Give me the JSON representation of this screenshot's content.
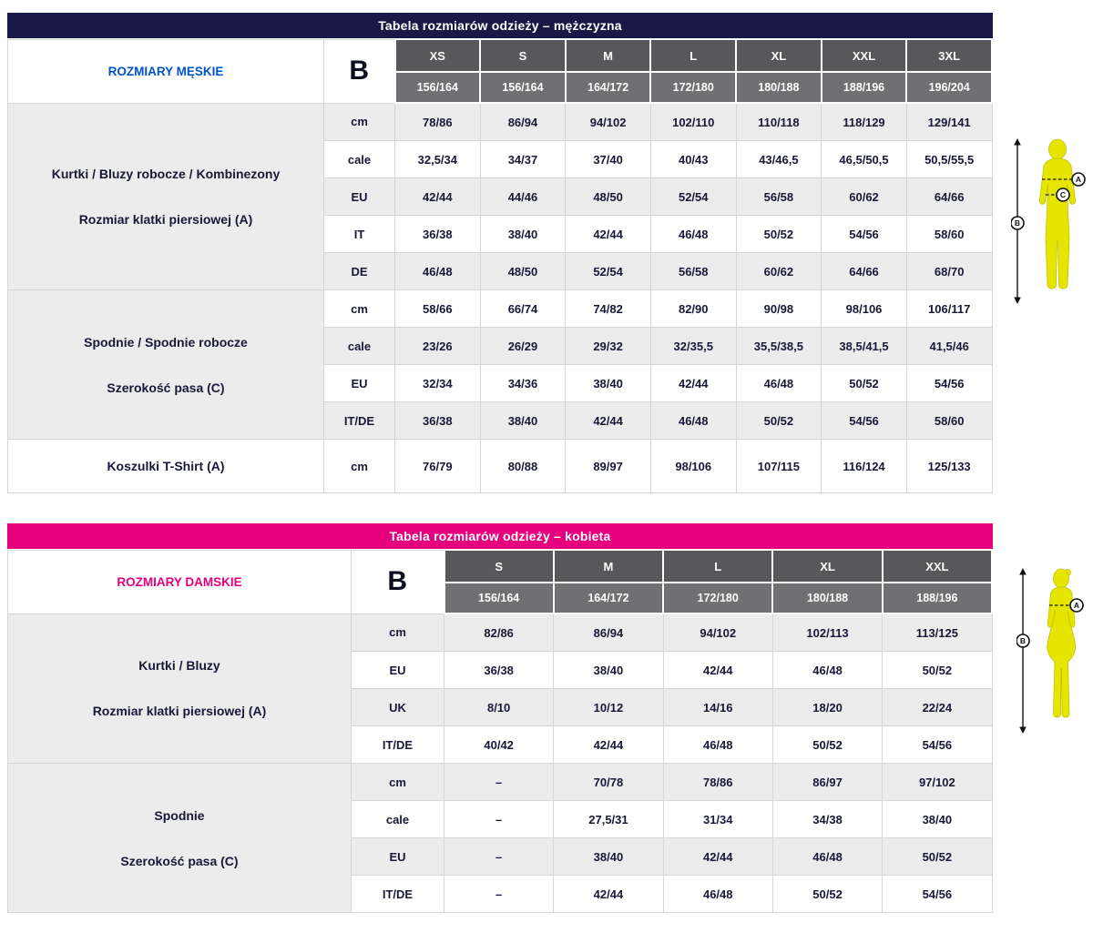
{
  "men_table": {
    "title": "Tabela rozmiarów odzieży – mężczyzna",
    "corner_label": "ROZMIARY MĘSKIE",
    "b_label": "B",
    "sizes": [
      "XS",
      "S",
      "M",
      "L",
      "XL",
      "XXL",
      "3XL"
    ],
    "heights": [
      "156/164",
      "156/164",
      "164/172",
      "172/180",
      "180/188",
      "188/196",
      "196/204"
    ],
    "sections": [
      {
        "label_lines": [
          "Kurtki / Bluzy robocze / Kombinezony",
          "Rozmiar klatki piersiowej (A)"
        ],
        "rows": [
          {
            "unit": "cm",
            "values": [
              "78/86",
              "86/94",
              "94/102",
              "102/110",
              "110/118",
              "118/129",
              "129/141"
            ]
          },
          {
            "unit": "cale",
            "values": [
              "32,5/34",
              "34/37",
              "37/40",
              "40/43",
              "43/46,5",
              "46,5/50,5",
              "50,5/55,5"
            ]
          },
          {
            "unit": "EU",
            "values": [
              "42/44",
              "44/46",
              "48/50",
              "52/54",
              "56/58",
              "60/62",
              "64/66"
            ]
          },
          {
            "unit": "IT",
            "values": [
              "36/38",
              "38/40",
              "42/44",
              "46/48",
              "50/52",
              "54/56",
              "58/60"
            ]
          },
          {
            "unit": "DE",
            "values": [
              "46/48",
              "48/50",
              "52/54",
              "56/58",
              "60/62",
              "64/66",
              "68/70"
            ]
          }
        ]
      },
      {
        "label_lines": [
          "Spodnie / Spodnie robocze",
          "Szerokość pasa (C)"
        ],
        "rows": [
          {
            "unit": "cm",
            "values": [
              "58/66",
              "66/74",
              "74/82",
              "82/90",
              "90/98",
              "98/106",
              "106/117"
            ]
          },
          {
            "unit": "cale",
            "values": [
              "23/26",
              "26/29",
              "29/32",
              "32/35,5",
              "35,5/38,5",
              "38,5/41,5",
              "41,5/46"
            ]
          },
          {
            "unit": "EU",
            "values": [
              "32/34",
              "34/36",
              "38/40",
              "42/44",
              "46/48",
              "50/52",
              "54/56"
            ]
          },
          {
            "unit": "IT/DE",
            "values": [
              "36/38",
              "38/40",
              "42/44",
              "46/48",
              "50/52",
              "54/56",
              "58/60"
            ]
          }
        ]
      },
      {
        "label_lines": [
          "Koszulki T-Shirt (A)"
        ],
        "rows": [
          {
            "unit": "cm",
            "values": [
              "76/79",
              "80/88",
              "89/97",
              "98/106",
              "107/115",
              "116/124",
              "125/133"
            ]
          }
        ]
      }
    ]
  },
  "women_table": {
    "title": "Tabela rozmiarów odzieży – kobieta",
    "corner_label": "ROZMIARY DAMSKIE",
    "b_label": "B",
    "sizes": [
      "S",
      "M",
      "L",
      "XL",
      "XXL"
    ],
    "heights": [
      "156/164",
      "164/172",
      "172/180",
      "180/188",
      "188/196"
    ],
    "sections": [
      {
        "label_lines": [
          "Kurtki / Bluzy",
          "Rozmiar klatki piersiowej (A)"
        ],
        "rows": [
          {
            "unit": "cm",
            "values": [
              "82/86",
              "86/94",
              "94/102",
              "102/113",
              "113/125"
            ]
          },
          {
            "unit": "EU",
            "values": [
              "36/38",
              "38/40",
              "42/44",
              "46/48",
              "50/52"
            ]
          },
          {
            "unit": "UK",
            "values": [
              "8/10",
              "10/12",
              "14/16",
              "18/20",
              "22/24"
            ]
          },
          {
            "unit": "IT/DE",
            "values": [
              "40/42",
              "42/44",
              "46/48",
              "50/52",
              "54/56"
            ]
          }
        ]
      },
      {
        "label_lines": [
          "Spodnie",
          "Szerokość pasa (C)"
        ],
        "rows": [
          {
            "unit": "cm",
            "values": [
              "–",
              "70/78",
              "78/86",
              "86/97",
              "97/102"
            ]
          },
          {
            "unit": "cale",
            "values": [
              "–",
              "27,5/31",
              "31/34",
              "34/38",
              "38/40"
            ]
          },
          {
            "unit": "EU",
            "values": [
              "–",
              "38/40",
              "42/44",
              "46/48",
              "50/52"
            ]
          },
          {
            "unit": "IT/DE",
            "values": [
              "–",
              "42/44",
              "46/48",
              "50/52",
              "54/56"
            ]
          }
        ]
      }
    ]
  },
  "figures": {
    "marker_a": "A",
    "marker_b": "B",
    "marker_c": "C"
  },
  "colors": {
    "men_header_bg": "#191947",
    "men_accent_text": "#0052cb",
    "women_header_bg": "#e6007e",
    "women_accent_text": "#e6007e",
    "size_header_bg": "#58585a",
    "height_header_bg": "#707073",
    "row_shade_bg": "#ececec",
    "figure_yellow": "#e5e500"
  }
}
